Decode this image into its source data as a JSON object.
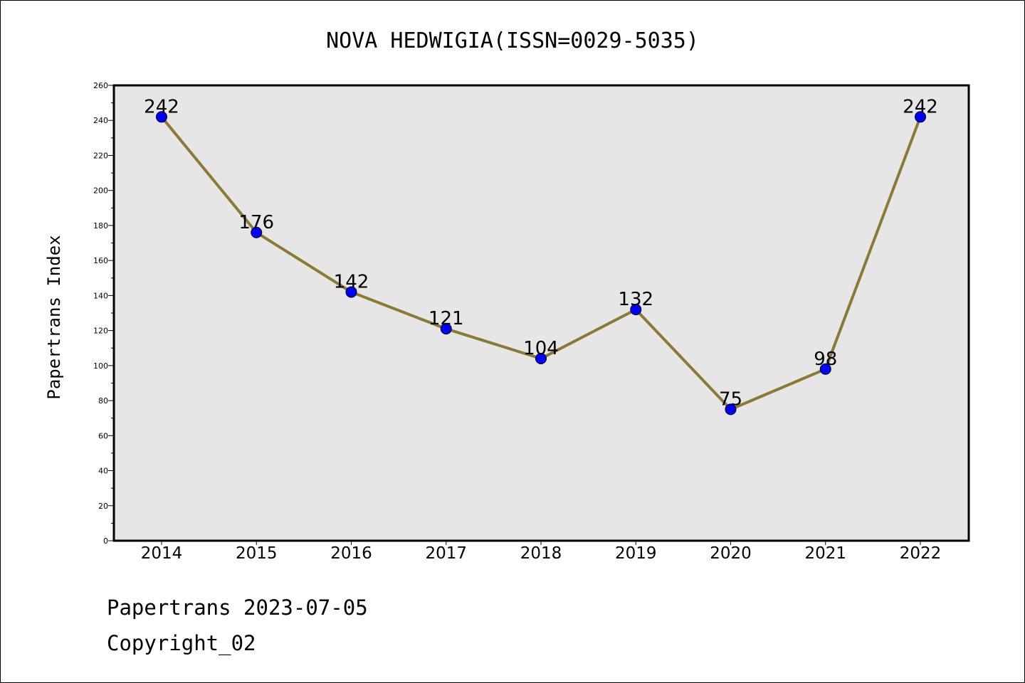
{
  "chart_data": {
    "type": "line",
    "title": "NOVA HEDWIGIA(ISSN=0029-5035)",
    "xlabel": "",
    "ylabel": "Papertrans Index",
    "x": [
      "2014",
      "2015",
      "2016",
      "2017",
      "2018",
      "2019",
      "2020",
      "2021",
      "2022"
    ],
    "series": [
      {
        "values": [
          242,
          176,
          142,
          121,
          104,
          132,
          75,
          98,
          242
        ]
      }
    ],
    "ylim": [
      0,
      260
    ],
    "yticks": [
      0,
      20,
      40,
      60,
      80,
      100,
      120,
      140,
      160,
      180,
      200,
      220,
      240,
      260
    ],
    "grid": false,
    "legend": "none",
    "colors": {
      "line": "#8b7a35",
      "marker": "#0000ff",
      "plot_background": "#e6e6e6"
    }
  },
  "footer": {
    "line1": "Papertrans 2023-07-05",
    "line2": "Copyright_02"
  }
}
